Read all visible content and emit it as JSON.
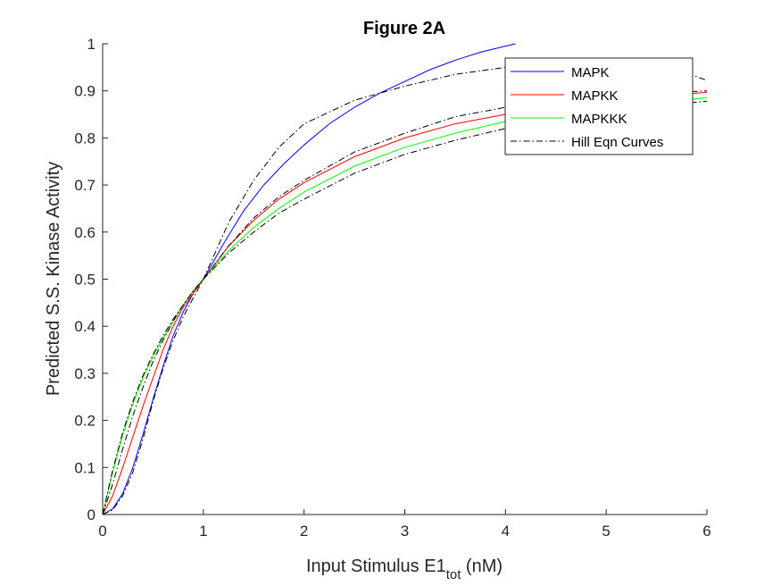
{
  "chart_data": {
    "type": "line",
    "title": "Figure 2A",
    "xlabel": "Input Stimulus E1",
    "xlabel_sub": "tot",
    "xlabel_unit": " (nM)",
    "ylabel": "Predicted S.S. Kinase Activity",
    "xlim": [
      0,
      6
    ],
    "ylim": [
      0,
      1
    ],
    "xticks": [
      0,
      1,
      2,
      3,
      4,
      5,
      6
    ],
    "xtick_labels": [
      "0",
      "1",
      "2",
      "3",
      "4",
      "5",
      "6"
    ],
    "yticks": [
      0,
      0.1,
      0.2,
      0.3,
      0.4,
      0.5,
      0.6,
      0.7,
      0.8,
      0.9,
      1
    ],
    "ytick_labels": [
      "0",
      "0.1",
      "0.2",
      "0.3",
      "0.4",
      "0.5",
      "0.6",
      "0.7",
      "0.8",
      "0.9",
      "1"
    ],
    "grid": false,
    "legend_position": "top-right",
    "series": [
      {
        "name": "MAPK",
        "color": "#0000ff",
        "style": "solid",
        "x": [
          0,
          0.1,
          0.2,
          0.3,
          0.4,
          0.5,
          0.6,
          0.7,
          0.8,
          0.9,
          1.0,
          1.2,
          1.4,
          1.6,
          1.8,
          2.0,
          2.25,
          2.5,
          2.75,
          3.0,
          3.25,
          3.5,
          3.75,
          4.0,
          4.1
        ],
        "y": [
          0,
          0.012,
          0.045,
          0.1,
          0.17,
          0.245,
          0.315,
          0.38,
          0.43,
          0.47,
          0.5,
          0.575,
          0.645,
          0.7,
          0.745,
          0.785,
          0.83,
          0.865,
          0.895,
          0.92,
          0.945,
          0.965,
          0.982,
          0.995,
          1.0
        ]
      },
      {
        "name": "MAPKK",
        "color": "#ff0000",
        "style": "solid",
        "x": [
          0,
          0.1,
          0.2,
          0.3,
          0.4,
          0.5,
          0.6,
          0.7,
          0.8,
          0.9,
          1.0,
          1.25,
          1.5,
          1.75,
          2.0,
          2.5,
          3.0,
          3.5,
          4.0,
          4.5,
          5.0,
          5.5,
          6.0
        ],
        "y": [
          0,
          0.04,
          0.1,
          0.165,
          0.23,
          0.29,
          0.35,
          0.4,
          0.44,
          0.47,
          0.5,
          0.57,
          0.625,
          0.67,
          0.705,
          0.76,
          0.8,
          0.83,
          0.85,
          0.865,
          0.878,
          0.888,
          0.897
        ]
      },
      {
        "name": "MAPKKK",
        "color": "#00ff00",
        "style": "solid",
        "x": [
          0,
          0.1,
          0.2,
          0.3,
          0.4,
          0.5,
          0.6,
          0.7,
          0.8,
          0.9,
          1.0,
          1.25,
          1.5,
          1.75,
          2.0,
          2.5,
          3.0,
          3.5,
          4.0,
          4.5,
          5.0,
          5.5,
          6.0
        ],
        "y": [
          0,
          0.09,
          0.17,
          0.235,
          0.29,
          0.335,
          0.375,
          0.41,
          0.445,
          0.475,
          0.5,
          0.56,
          0.61,
          0.65,
          0.685,
          0.74,
          0.78,
          0.81,
          0.835,
          0.85,
          0.865,
          0.876,
          0.885
        ]
      }
    ],
    "hill_curves": {
      "name": "Hill Eqn Curves",
      "color": "#000000",
      "style": "dash-dot",
      "curves": [
        {
          "x": [
            0,
            0.1,
            0.2,
            0.3,
            0.4,
            0.5,
            0.6,
            0.7,
            0.8,
            0.9,
            1.0,
            1.25,
            1.5,
            1.75,
            2.0,
            2.5,
            3.0,
            3.5,
            4.0,
            4.5,
            5.0,
            5.5,
            6.0
          ],
          "y": [
            0,
            0.01,
            0.04,
            0.09,
            0.16,
            0.24,
            0.31,
            0.37,
            0.42,
            0.46,
            0.5,
            0.62,
            0.71,
            0.78,
            0.83,
            0.88,
            0.91,
            0.935,
            0.95,
            0.955,
            0.96,
            0.962,
            0.922
          ]
        },
        {
          "x": [
            0,
            0.1,
            0.2,
            0.3,
            0.4,
            0.5,
            0.6,
            0.7,
            0.8,
            0.9,
            1.0,
            1.25,
            1.5,
            1.75,
            2.0,
            2.5,
            3.0,
            3.5,
            4.0,
            4.5,
            5.0,
            5.5,
            6.0
          ],
          "y": [
            0,
            0.065,
            0.14,
            0.21,
            0.27,
            0.325,
            0.37,
            0.41,
            0.445,
            0.475,
            0.5,
            0.57,
            0.63,
            0.675,
            0.71,
            0.77,
            0.81,
            0.845,
            0.865,
            0.88,
            0.89,
            0.895,
            0.9
          ]
        },
        {
          "x": [
            0,
            0.1,
            0.2,
            0.3,
            0.4,
            0.5,
            0.6,
            0.7,
            0.8,
            0.9,
            1.0,
            1.25,
            1.5,
            1.75,
            2.0,
            2.5,
            3.0,
            3.5,
            4.0,
            4.5,
            5.0,
            5.5,
            6.0
          ],
          "y": [
            0,
            0.095,
            0.175,
            0.24,
            0.295,
            0.34,
            0.38,
            0.415,
            0.445,
            0.475,
            0.5,
            0.555,
            0.6,
            0.64,
            0.67,
            0.725,
            0.765,
            0.795,
            0.82,
            0.84,
            0.855,
            0.868,
            0.878
          ]
        }
      ]
    }
  }
}
